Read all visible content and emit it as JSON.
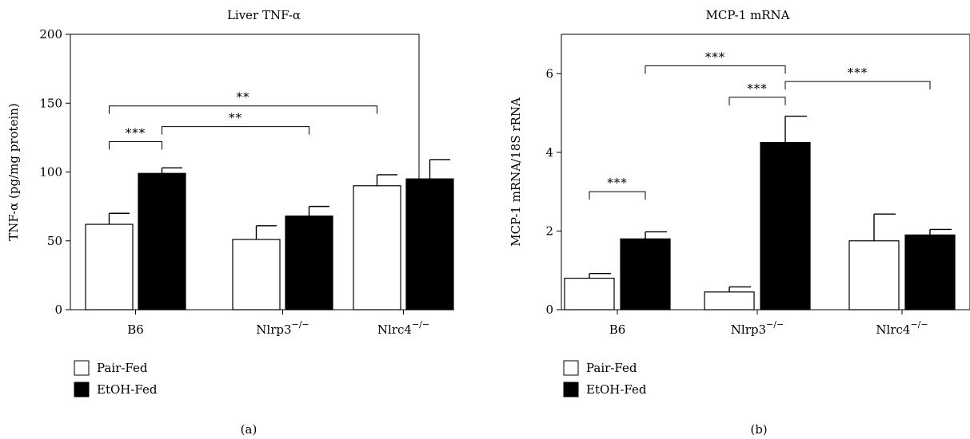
{
  "chart_data": [
    {
      "type": "bar",
      "panel_label": "(a)",
      "title": "Liver TNF-α",
      "ylabel": "TNF-α (pg/mg protein)",
      "xlabel": "",
      "ylim": [
        0,
        200
      ],
      "yticks": [
        0,
        50,
        100,
        150,
        200
      ],
      "grid": false,
      "legend_position": "bottom-left",
      "categories": [
        {
          "base": "B6",
          "sup": ""
        },
        {
          "base": "Nlrp3",
          "sup": "−/−"
        },
        {
          "base": "Nlrc4",
          "sup": "−/−"
        }
      ],
      "series": [
        {
          "name": "Pair-Fed",
          "color": "#ffffff",
          "values": [
            62,
            51,
            90
          ],
          "errors": [
            8,
            10,
            8
          ]
        },
        {
          "name": "EtOH-Fed",
          "color": "#000000",
          "values": [
            99,
            68,
            95
          ],
          "errors": [
            4,
            7,
            14
          ]
        }
      ],
      "significance": [
        {
          "from": [
            0,
            0
          ],
          "to": [
            0,
            1
          ],
          "level": 122,
          "label": "***"
        },
        {
          "from": [
            0,
            1
          ],
          "to": [
            1,
            1
          ],
          "level": 133,
          "label": "**"
        },
        {
          "from": [
            0,
            0
          ],
          "to": [
            2,
            0
          ],
          "level": 148,
          "label": "**"
        }
      ]
    },
    {
      "type": "bar",
      "panel_label": "(b)",
      "title": "MCP-1 mRNA",
      "ylabel": "MCP-1 mRNA/18S rRNA",
      "xlabel": "",
      "ylim": [
        0,
        7
      ],
      "yticks": [
        0,
        2,
        4,
        6
      ],
      "grid": false,
      "legend_position": "bottom-left",
      "categories": [
        {
          "base": "B6",
          "sup": ""
        },
        {
          "base": "Nlrp3",
          "sup": "−/−"
        },
        {
          "base": "Nlrc4",
          "sup": "−/−"
        }
      ],
      "series": [
        {
          "name": "Pair-Fed",
          "color": "#ffffff",
          "values": [
            0.8,
            0.45,
            1.75
          ],
          "errors": [
            0.12,
            0.13,
            0.68
          ]
        },
        {
          "name": "EtOH-Fed",
          "color": "#000000",
          "values": [
            1.8,
            4.25,
            1.9
          ],
          "errors": [
            0.18,
            0.67,
            0.14
          ]
        }
      ],
      "significance": [
        {
          "from": [
            0,
            0
          ],
          "to": [
            0,
            1
          ],
          "level": 3.0,
          "label": "***"
        },
        {
          "from": [
            1,
            0
          ],
          "to": [
            1,
            1
          ],
          "level": 5.4,
          "label": "***"
        },
        {
          "from": [
            0,
            1
          ],
          "to": [
            1,
            1
          ],
          "level": 6.2,
          "label": "***"
        },
        {
          "from": [
            1,
            1
          ],
          "to": [
            2,
            1
          ],
          "level": 5.8,
          "label": "***"
        }
      ]
    }
  ]
}
